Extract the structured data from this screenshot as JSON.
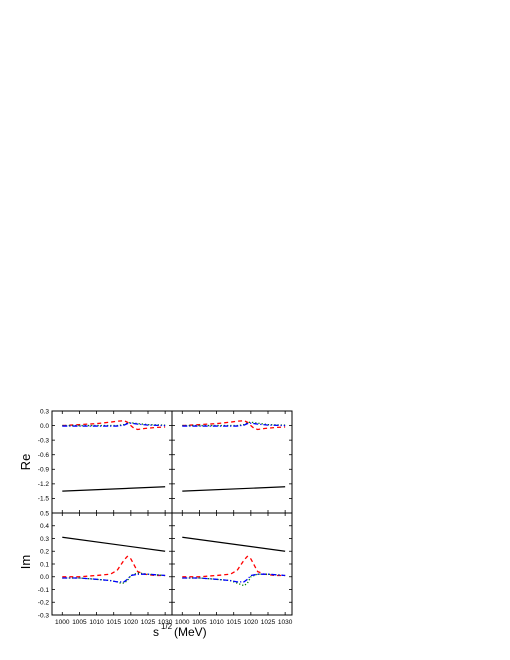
{
  "chart_data": {
    "type": "line",
    "xlabel": {
      "base": "s",
      "sup": "1/2",
      "unit": "(MeV)"
    },
    "x_ticks": [
      1000,
      1005,
      1010,
      1015,
      1020,
      1025,
      1030
    ],
    "xlim": [
      997,
      1032
    ],
    "rows": [
      {
        "ylabel": "Re",
        "ylim": [
          -1.8,
          0.3
        ],
        "y_ticks": [
          0.3,
          0.0,
          -0.3,
          -0.6,
          -0.9,
          -1.2,
          -1.5
        ],
        "y_tick_labels": [
          "0.3",
          "0.0",
          "-0.3",
          "-0.6",
          "-0.9",
          "-1.2",
          "-1.5"
        ]
      },
      {
        "ylabel": "Im",
        "ylim": [
          -0.3,
          0.5
        ],
        "y_ticks": [
          0.5,
          0.4,
          0.3,
          0.2,
          0.1,
          0.0,
          -0.1,
          -0.2,
          -0.3
        ],
        "y_tick_labels": [
          "0.5",
          "0.4",
          "0.3",
          "0.2",
          "0.1",
          "0.0",
          "-0.1",
          "-0.2",
          "-0.3"
        ]
      }
    ],
    "panels": [
      {
        "row": 0,
        "col": 0,
        "series": [
          {
            "style": "solid",
            "color": "#000000",
            "x": [
              1000,
              1030
            ],
            "y": [
              -1.35,
              -1.26
            ]
          },
          {
            "style": "dash",
            "color": "#ff0000",
            "x": [
              1000,
              1005,
              1010,
              1014,
              1016,
              1018,
              1019,
              1020,
              1021,
              1022,
              1024,
              1027,
              1030
            ],
            "y": [
              0.0,
              0.02,
              0.04,
              0.07,
              0.09,
              0.1,
              0.07,
              0.0,
              -0.06,
              -0.08,
              -0.06,
              -0.04,
              -0.03
            ]
          },
          {
            "style": "dot",
            "color": "#008000",
            "x": [
              1000,
              1010,
              1016,
              1018,
              1019,
              1020,
              1022,
              1025,
              1030
            ],
            "y": [
              0.0,
              0.0,
              0.0,
              0.02,
              0.05,
              0.06,
              0.04,
              0.02,
              0.01
            ]
          },
          {
            "style": "dashdot",
            "color": "#0000ff",
            "x": [
              1000,
              1010,
              1016,
              1018,
              1019,
              1020,
              1022,
              1025,
              1030
            ],
            "y": [
              -0.01,
              -0.01,
              -0.01,
              0.01,
              0.04,
              0.05,
              0.03,
              0.01,
              0.0
            ]
          }
        ]
      },
      {
        "row": 0,
        "col": 1,
        "series": [
          {
            "style": "solid",
            "color": "#000000",
            "x": [
              1000,
              1030
            ],
            "y": [
              -1.35,
              -1.26
            ]
          },
          {
            "style": "dash",
            "color": "#ff0000",
            "x": [
              1000,
              1005,
              1010,
              1014,
              1016,
              1018,
              1019,
              1020,
              1021,
              1022,
              1024,
              1027,
              1030
            ],
            "y": [
              0.0,
              0.02,
              0.04,
              0.07,
              0.09,
              0.1,
              0.07,
              0.0,
              -0.06,
              -0.08,
              -0.06,
              -0.04,
              -0.03
            ]
          },
          {
            "style": "dot",
            "color": "#008000",
            "x": [
              1000,
              1010,
              1016,
              1018,
              1019,
              1020,
              1022,
              1025,
              1030
            ],
            "y": [
              0.0,
              0.0,
              0.0,
              0.02,
              0.06,
              0.07,
              0.05,
              0.02,
              0.01
            ]
          },
          {
            "style": "dashdot",
            "color": "#0000ff",
            "x": [
              1000,
              1010,
              1016,
              1018,
              1019,
              1020,
              1022,
              1025,
              1030
            ],
            "y": [
              -0.01,
              -0.01,
              -0.01,
              0.01,
              0.04,
              0.05,
              0.03,
              0.01,
              0.0
            ]
          }
        ]
      },
      {
        "row": 1,
        "col": 0,
        "series": [
          {
            "style": "solid",
            "color": "#000000",
            "x": [
              1000,
              1030
            ],
            "y": [
              0.31,
              0.2
            ]
          },
          {
            "style": "dash",
            "color": "#ff0000",
            "x": [
              1000,
              1005,
              1010,
              1014,
              1016,
              1017,
              1018,
              1019,
              1020,
              1021,
              1022,
              1024,
              1027,
              1030
            ],
            "y": [
              0.0,
              0.0,
              0.01,
              0.02,
              0.05,
              0.09,
              0.13,
              0.16,
              0.14,
              0.09,
              0.04,
              0.02,
              0.01,
              0.01
            ]
          },
          {
            "style": "dot",
            "color": "#008000",
            "x": [
              1000,
              1005,
              1010,
              1014,
              1016,
              1017,
              1018,
              1019,
              1020,
              1022,
              1025,
              1030
            ],
            "y": [
              -0.01,
              -0.01,
              -0.02,
              -0.03,
              -0.04,
              -0.05,
              -0.05,
              -0.03,
              0.01,
              0.03,
              0.02,
              0.01
            ]
          },
          {
            "style": "dashdot",
            "color": "#0000ff",
            "x": [
              1000,
              1005,
              1010,
              1014,
              1016,
              1017,
              1018,
              1019,
              1020,
              1022,
              1025,
              1030
            ],
            "y": [
              -0.01,
              -0.01,
              -0.02,
              -0.03,
              -0.04,
              -0.04,
              -0.04,
              -0.02,
              0.01,
              0.02,
              0.02,
              0.01
            ]
          }
        ]
      },
      {
        "row": 1,
        "col": 1,
        "series": [
          {
            "style": "solid",
            "color": "#000000",
            "x": [
              1000,
              1030
            ],
            "y": [
              0.31,
              0.2
            ]
          },
          {
            "style": "dash",
            "color": "#ff0000",
            "x": [
              1000,
              1005,
              1010,
              1014,
              1016,
              1017,
              1018,
              1019,
              1020,
              1021,
              1022,
              1024,
              1027,
              1030
            ],
            "y": [
              0.0,
              0.0,
              0.01,
              0.02,
              0.05,
              0.09,
              0.13,
              0.16,
              0.14,
              0.09,
              0.04,
              0.02,
              0.01,
              0.01
            ]
          },
          {
            "style": "dot",
            "color": "#008000",
            "x": [
              1000,
              1005,
              1010,
              1014,
              1016,
              1017,
              1018,
              1019,
              1020,
              1022,
              1025,
              1030
            ],
            "y": [
              -0.01,
              -0.01,
              -0.02,
              -0.03,
              -0.05,
              -0.06,
              -0.07,
              -0.05,
              0.0,
              0.02,
              0.02,
              0.01
            ]
          },
          {
            "style": "dashdot",
            "color": "#0000ff",
            "x": [
              1000,
              1005,
              1010,
              1014,
              1016,
              1017,
              1018,
              1019,
              1020,
              1022,
              1025,
              1030
            ],
            "y": [
              -0.01,
              -0.01,
              -0.02,
              -0.03,
              -0.04,
              -0.04,
              -0.04,
              -0.02,
              0.01,
              0.02,
              0.02,
              0.01
            ]
          }
        ]
      }
    ]
  }
}
